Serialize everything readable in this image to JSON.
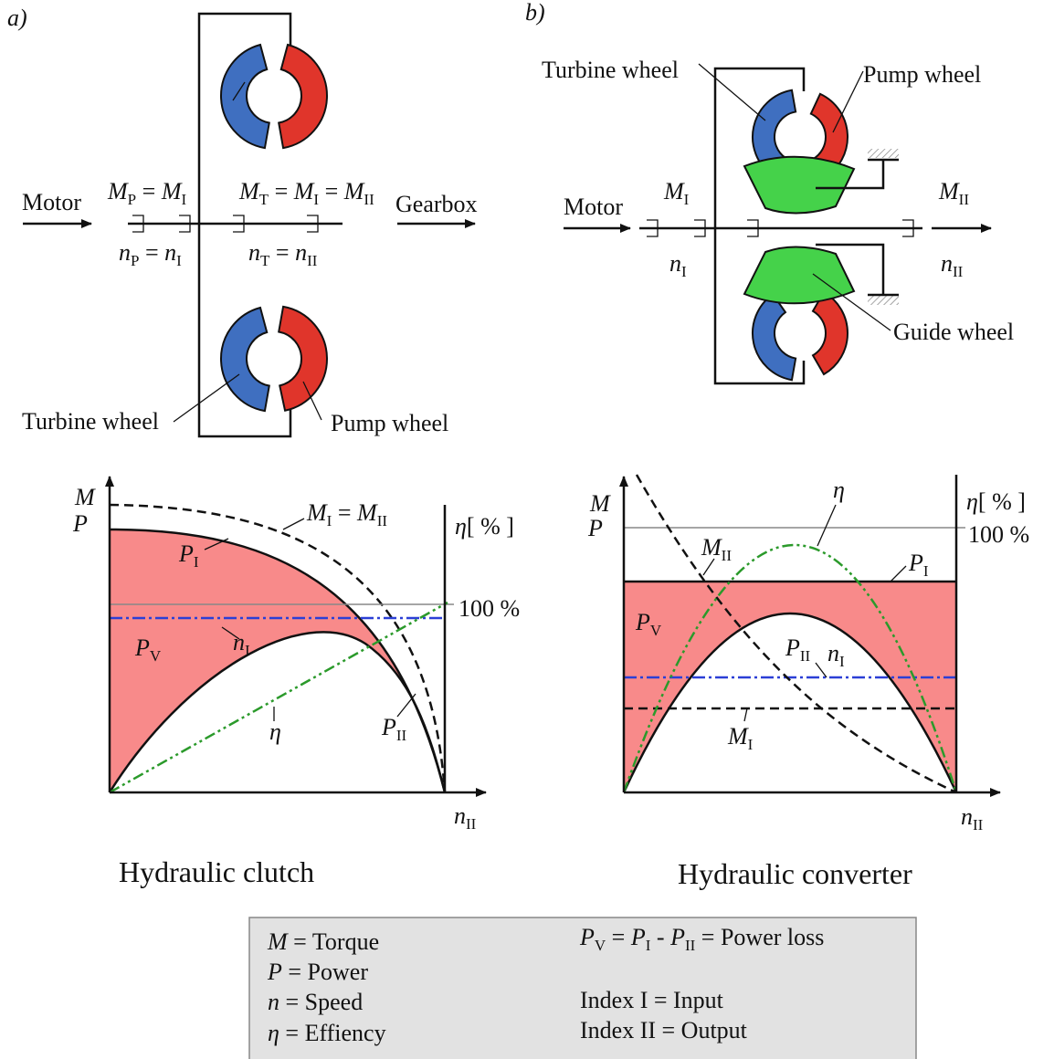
{
  "panel_a": {
    "label": "a)",
    "motor": "Motor",
    "gearbox": "Gearbox",
    "eq_top_left": [
      {
        "symbol": "M",
        "index": "P"
      },
      " = ",
      {
        "symbol": "M",
        "index": "I"
      }
    ],
    "eq_top_right": [
      {
        "symbol": "M",
        "index": "T"
      },
      " = ",
      {
        "symbol": "M",
        "index": "I"
      },
      " = ",
      {
        "symbol": "M",
        "index": "II"
      }
    ],
    "eq_bottom_left": [
      {
        "symbol": "n",
        "index": "P"
      },
      " = ",
      {
        "symbol": "n",
        "index": "I"
      }
    ],
    "eq_bottom_right": [
      {
        "symbol": "n",
        "index": "T"
      },
      " = ",
      {
        "symbol": "n",
        "index": "II"
      }
    ],
    "turbine": "Turbine wheel",
    "pump": "Pump wheel"
  },
  "panel_b": {
    "label": "b)",
    "turbine": "Turbine wheel",
    "pump": "Pump wheel",
    "motor": "Motor",
    "torque_in": [
      {
        "symbol": "M",
        "index": "I"
      }
    ],
    "torque_out": [
      {
        "symbol": "M",
        "index": "II"
      }
    ],
    "speed_in": [
      {
        "symbol": "n",
        "index": "I"
      }
    ],
    "speed_out": [
      {
        "symbol": "n",
        "index": "II"
      }
    ],
    "guide": "Guide wheel"
  },
  "clutch_graph": {
    "axis_m": [
      {
        "symbol": "M"
      }
    ],
    "axis_p": [
      {
        "symbol": "P"
      }
    ],
    "axis_eta": [
      {
        "symbol": "η"
      },
      "[ % ]"
    ],
    "full": "100 %",
    "torque": [
      {
        "symbol": "M",
        "index": "I"
      },
      " = ",
      {
        "symbol": "M",
        "index": "II"
      }
    ],
    "power_in": [
      {
        "symbol": "P",
        "index": "I"
      }
    ],
    "power_loss": [
      {
        "symbol": "P",
        "index": "V"
      }
    ],
    "speed_in": [
      {
        "symbol": "n",
        "index": "I"
      }
    ],
    "efficiency": [
      {
        "symbol": "η"
      }
    ],
    "power_out": [
      {
        "symbol": "P",
        "index": "II"
      }
    ],
    "axis_n": [
      {
        "symbol": "n",
        "index": "II"
      }
    ],
    "caption": "Hydraulic clutch"
  },
  "converter_graph": {
    "axis_m": [
      {
        "symbol": "M"
      }
    ],
    "axis_p": [
      {
        "symbol": "P"
      }
    ],
    "axis_eta": [
      {
        "symbol": "η"
      },
      "[ % ]"
    ],
    "full": "100 %",
    "efficiency": [
      {
        "symbol": "η"
      }
    ],
    "torque_out": [
      {
        "symbol": "M",
        "index": "II"
      }
    ],
    "power_in": [
      {
        "symbol": "P",
        "index": "I"
      }
    ],
    "power_loss": [
      {
        "symbol": "P",
        "index": "V"
      }
    ],
    "power_out": [
      {
        "symbol": "P",
        "index": "II"
      }
    ],
    "speed_in": [
      {
        "symbol": "n",
        "index": "I"
      }
    ],
    "torque_in": [
      {
        "symbol": "M",
        "index": "I"
      }
    ],
    "axis_n": [
      {
        "symbol": "n",
        "index": "II"
      }
    ],
    "caption": "Hydraulic converter"
  },
  "legend": {
    "torque": [
      {
        "symbol": "M"
      },
      " = Torque"
    ],
    "power": [
      {
        "symbol": "P"
      },
      " = Power"
    ],
    "speed": [
      {
        "symbol": "n"
      },
      " = Speed"
    ],
    "efficiency": [
      {
        "symbol": "η"
      },
      " = Effiency"
    ],
    "power_loss": [
      {
        "symbol": "P",
        "index": "V"
      },
      " = ",
      {
        "symbol": "P",
        "index": "I"
      },
      " - ",
      {
        "symbol": "P",
        "index": "II"
      },
      " = Power loss"
    ],
    "input": "Index  I = Input",
    "output": "Index II = Output"
  }
}
